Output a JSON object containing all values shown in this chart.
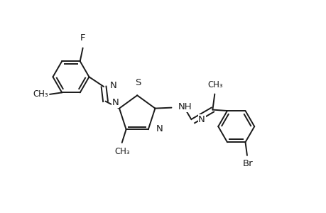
{
  "background_color": "#ffffff",
  "line_color": "#1a1a1a",
  "line_width": 1.4,
  "font_size": 9.5,
  "figsize": [
    4.6,
    3.0
  ],
  "dpi": 100,
  "xlim": [
    0.0,
    9.2
  ],
  "ylim": [
    0.0,
    6.0
  ]
}
